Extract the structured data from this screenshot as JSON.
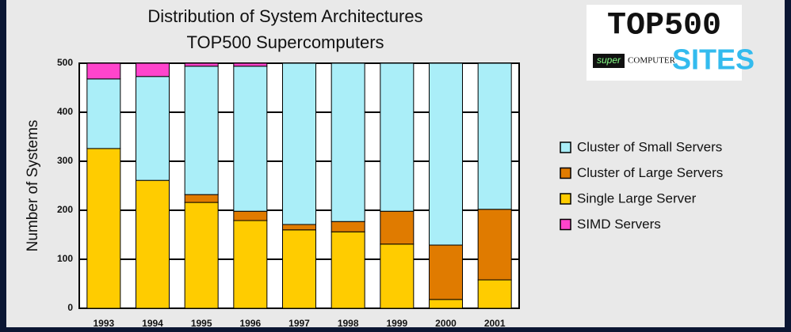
{
  "chart_data": {
    "type": "stacked_bar",
    "title": "Distribution of System Architectures",
    "subtitle": "TOP500 Supercomputers",
    "ylabel": "Number of Systems",
    "categories": [
      "1993",
      "1994",
      "1995",
      "1996",
      "1997",
      "1998",
      "1999",
      "2000",
      "2001"
    ],
    "series": [
      {
        "name": "Cluster of Small Servers",
        "color": "#aaeef8",
        "values": [
          142,
          212,
          262,
          296,
          329,
          323,
          302,
          371,
          298
        ]
      },
      {
        "name": "Cluster of Large Servers",
        "color": "#e07b00",
        "values": [
          0,
          0,
          16,
          19,
          11,
          21,
          67,
          111,
          144
        ]
      },
      {
        "name": "Single Large Server",
        "color": "#ffcc00",
        "values": [
          326,
          261,
          216,
          179,
          160,
          156,
          131,
          18,
          58
        ]
      },
      {
        "name": "SIMD Servers",
        "color": "#ff44cc",
        "values": [
          32,
          27,
          6,
          6,
          0,
          0,
          0,
          0,
          0
        ]
      }
    ],
    "ylim": [
      0,
      500
    ],
    "yticks": [
      0,
      100,
      200,
      300,
      400,
      500
    ],
    "grid": true,
    "legend": "right",
    "logo": {
      "top": "TOP500",
      "super": "super",
      "computer": "COMPUTER",
      "sites": "SITES"
    }
  }
}
